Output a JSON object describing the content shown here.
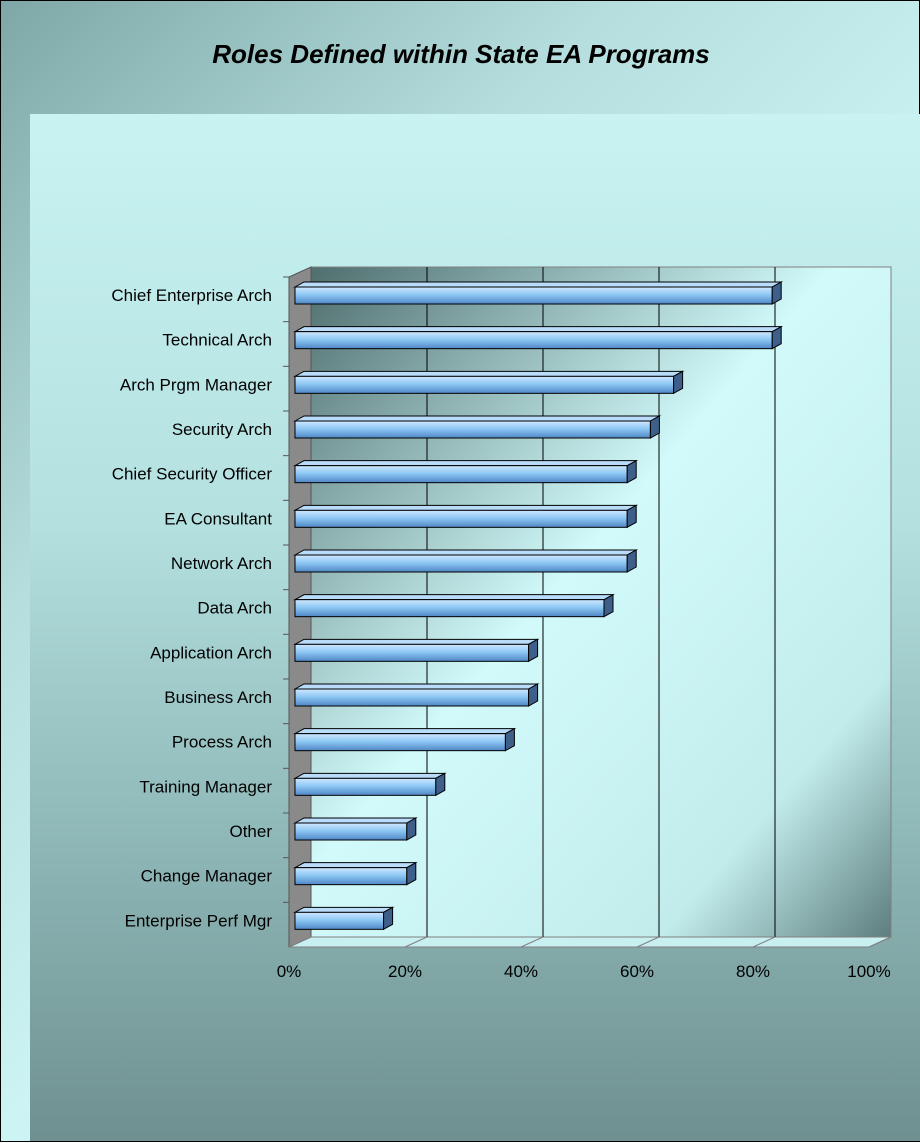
{
  "chart_data": {
    "type": "bar",
    "orientation": "horizontal",
    "title": "Roles Defined within State EA Programs",
    "categories": [
      "Chief Enterprise Arch",
      "Technical Arch",
      "Arch Prgm Manager",
      "Security Arch",
      "Chief Security Officer",
      "EA Consultant",
      "Network Arch",
      "Data Arch",
      "Application Arch",
      "Business Arch",
      "Process Arch",
      "Training Manager",
      "Other",
      "Change Manager",
      "Enterprise Perf Mgr"
    ],
    "values": [
      84,
      84,
      67,
      63,
      59,
      59,
      59,
      55,
      42,
      42,
      38,
      26,
      21,
      21,
      17
    ],
    "xlim": [
      0,
      100
    ],
    "xticks": [
      "0%",
      "20%",
      "40%",
      "60%",
      "80%",
      "100%"
    ],
    "grid": true,
    "bar_color": "#8ec8f5"
  }
}
